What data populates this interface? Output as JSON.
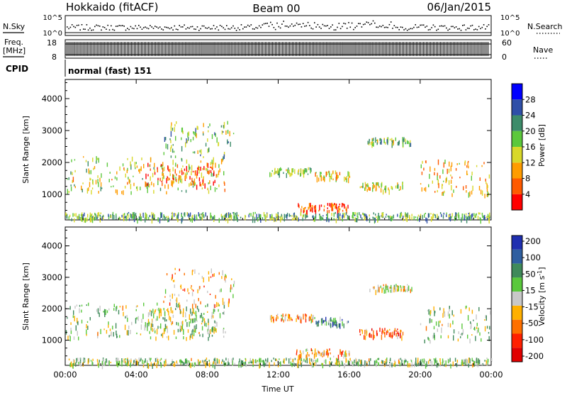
{
  "header": {
    "title_left": "Hokkaido (fitACF)",
    "title_center": "Beam 00",
    "title_right": "06/Jan/2015"
  },
  "strip": {
    "nsky_label": "N.Sky",
    "nsearch_label": "N.Search",
    "nsky_tick_top": "10^5",
    "nsky_tick_bottom": "10^0",
    "nsearch_tick_top": "10^5",
    "nsearch_tick_bottom": "10^0",
    "freq_label_1": "Freq.",
    "freq_label_2": "[MHz]",
    "freq_tick_top": "18",
    "freq_tick_bottom": "8",
    "nave_label": "Nave",
    "nave_tick_top": "60",
    "nave_tick_bottom": "0",
    "cpid_label": "CPID",
    "cpid_value": "normal (fast) 151"
  },
  "chart_data": [
    {
      "type": "heatmap",
      "panel": "power",
      "ylabel": "Slant Range [km]",
      "ylim": [
        200,
        4600
      ],
      "yticks": [
        "1000",
        "2000",
        "3000",
        "4000"
      ],
      "xticks": [
        "00:00",
        "04:00",
        "08:00",
        "12:00",
        "16:00",
        "20:00",
        "00:00"
      ],
      "xlim_hours": [
        0,
        24
      ],
      "colorbar_label": "Power [dB]",
      "colorbar_ticks": [
        "4",
        "8",
        "12",
        "16",
        "20",
        "24",
        "28"
      ],
      "colorbar_colors": [
        "#0000ff",
        "#2f4fa8",
        "#3d8c6a",
        "#5cc83c",
        "#d8d82a",
        "#ff9c00",
        "#ff5a00",
        "#ff0000"
      ],
      "scatter_regions": [
        {
          "t": [
            0.0,
            9.0
          ],
          "r": [
            1100,
            2200
          ],
          "level": 0.55
        },
        {
          "t": [
            4.5,
            8.5
          ],
          "r": [
            1300,
            2000
          ],
          "level": 0.8
        },
        {
          "t": [
            5.5,
            9.5
          ],
          "r": [
            2100,
            3300
          ],
          "level": 0.45
        },
        {
          "t": [
            11.5,
            14.0
          ],
          "r": [
            1650,
            1850
          ],
          "level": 0.5
        },
        {
          "t": [
            14.0,
            16.0
          ],
          "r": [
            1500,
            1750
          ],
          "level": 0.6
        },
        {
          "t": [
            16.5,
            19.0
          ],
          "r": [
            1150,
            1400
          ],
          "level": 0.55
        },
        {
          "t": [
            13.0,
            16.0
          ],
          "r": [
            500,
            750
          ],
          "level": 0.85
        },
        {
          "t": [
            17.0,
            19.5
          ],
          "r": [
            2600,
            2800
          ],
          "level": 0.45
        },
        {
          "t": [
            20.0,
            24.0
          ],
          "r": [
            1000,
            2100
          ],
          "level": 0.65
        },
        {
          "t": [
            0.0,
            24.0
          ],
          "r": [
            250,
            450
          ],
          "level": 0.4
        }
      ]
    },
    {
      "type": "heatmap",
      "panel": "velocity",
      "ylabel": "Slant Range [km]",
      "ylim": [
        200,
        4600
      ],
      "yticks": [
        "1000",
        "2000",
        "3000",
        "4000"
      ],
      "xticks": [
        "00:00",
        "04:00",
        "08:00",
        "12:00",
        "16:00",
        "20:00",
        "00:00"
      ],
      "xlabel": "Time UT",
      "xlim_hours": [
        0,
        24
      ],
      "colorbar_label": "Velocity [m s^-1]",
      "colorbar_ticks": [
        "200",
        "100",
        "50",
        "15",
        "-15",
        "-50",
        "-100",
        "-200"
      ],
      "colorbar_colors": [
        "#1f2fb0",
        "#2f5fa0",
        "#3f8a5a",
        "#5ac83c",
        "#c8c8c8",
        "#ffb000",
        "#ff7000",
        "#ff2000",
        "#e00000"
      ],
      "scatter_regions": [
        {
          "t": [
            0.0,
            9.0
          ],
          "r": [
            1100,
            2200
          ],
          "level": 0.45
        },
        {
          "t": [
            4.5,
            8.5
          ],
          "r": [
            1300,
            2000
          ],
          "level": 0.45
        },
        {
          "t": [
            5.5,
            9.5
          ],
          "r": [
            2100,
            3300
          ],
          "level": 0.6
        },
        {
          "t": [
            11.5,
            14.0
          ],
          "r": [
            1650,
            1850
          ],
          "level": 0.65
        },
        {
          "t": [
            14.0,
            16.0
          ],
          "r": [
            1500,
            1750
          ],
          "level": 0.3
        },
        {
          "t": [
            16.5,
            19.0
          ],
          "r": [
            1150,
            1400
          ],
          "level": 0.75
        },
        {
          "t": [
            13.0,
            16.0
          ],
          "r": [
            500,
            750
          ],
          "level": 0.65
        },
        {
          "t": [
            17.0,
            19.5
          ],
          "r": [
            2600,
            2800
          ],
          "level": 0.55
        },
        {
          "t": [
            20.0,
            24.0
          ],
          "r": [
            1000,
            2100
          ],
          "level": 0.45
        },
        {
          "t": [
            0.0,
            24.0
          ],
          "r": [
            250,
            450
          ],
          "level": 0.45
        }
      ]
    }
  ]
}
